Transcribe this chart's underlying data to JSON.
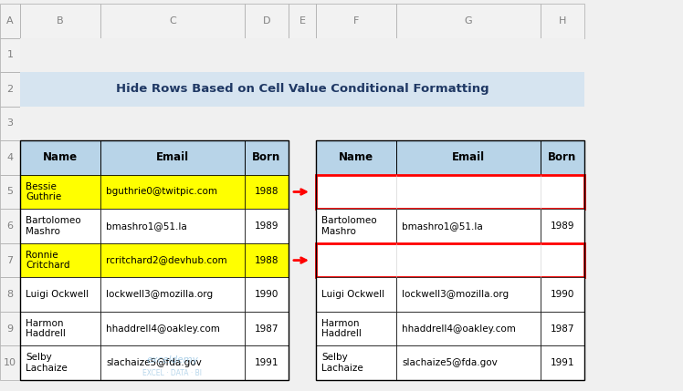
{
  "title": "Hide Rows Based on Cell Value Conditional Formatting",
  "title_bg": "#d6e4f0",
  "col_header_bg": "#b8d4e8",
  "yellow_bg": "#ffff00",
  "white_bg": "#ffffff",
  "red_border": "#ff0000",
  "grid_color": "#000000",
  "row_label_color": "#808080",
  "col_label_color": "#808080",
  "outer_bg": "#f0f0f0",
  "left_table": {
    "headers": [
      "Name",
      "Email",
      "Born"
    ],
    "rows": [
      {
        "name": "Bessie\nGuthrie",
        "email": "bguthrie0@twitpic.com",
        "born": "1988",
        "highlight": true
      },
      {
        "name": "Bartolomeo\nMashro",
        "email": "bmashro1@51.la",
        "born": "1989",
        "highlight": false
      },
      {
        "name": "Ronnie\nCritchard",
        "email": "rcritchard2@devhub.com",
        "born": "1988",
        "highlight": true
      },
      {
        "name": "Luigi Ockwell",
        "email": "lockwell3@mozilla.org",
        "born": "1990",
        "highlight": false
      },
      {
        "name": "Harmon\nHaddrell",
        "email": "hhaddrell4@oakley.com",
        "born": "1987",
        "highlight": false
      },
      {
        "name": "Selby\nLachaize",
        "email": "slachaize5@fda.gov",
        "born": "1991",
        "highlight": false
      }
    ]
  },
  "right_table": {
    "headers": [
      "Name",
      "Email",
      "Born"
    ],
    "rows": [
      {
        "name": "",
        "email": "",
        "born": "",
        "red_border": true
      },
      {
        "name": "Bartolomeo\nMashro",
        "email": "bmashro1@51.la",
        "born": "1989",
        "red_border": false
      },
      {
        "name": "",
        "email": "",
        "born": "",
        "red_border": true
      },
      {
        "name": "Luigi Ockwell",
        "email": "lockwell3@mozilla.org",
        "born": "1990",
        "red_border": false
      },
      {
        "name": "Harmon\nHaddrell",
        "email": "hhaddrell4@oakley.com",
        "born": "1987",
        "red_border": false
      },
      {
        "name": "Selby\nLachaize",
        "email": "slachaize5@fda.gov",
        "born": "1991",
        "red_border": false
      }
    ]
  },
  "col_labels": [
    "A",
    "B",
    "C",
    "D",
    "E",
    "F",
    "G",
    "H"
  ],
  "col_w": [
    0.22,
    0.88,
    1.58,
    0.48,
    0.3,
    0.88,
    1.58,
    0.48
  ],
  "watermark_line1": "exceldemy",
  "watermark_line2": "EXCEL · DATA · BI"
}
